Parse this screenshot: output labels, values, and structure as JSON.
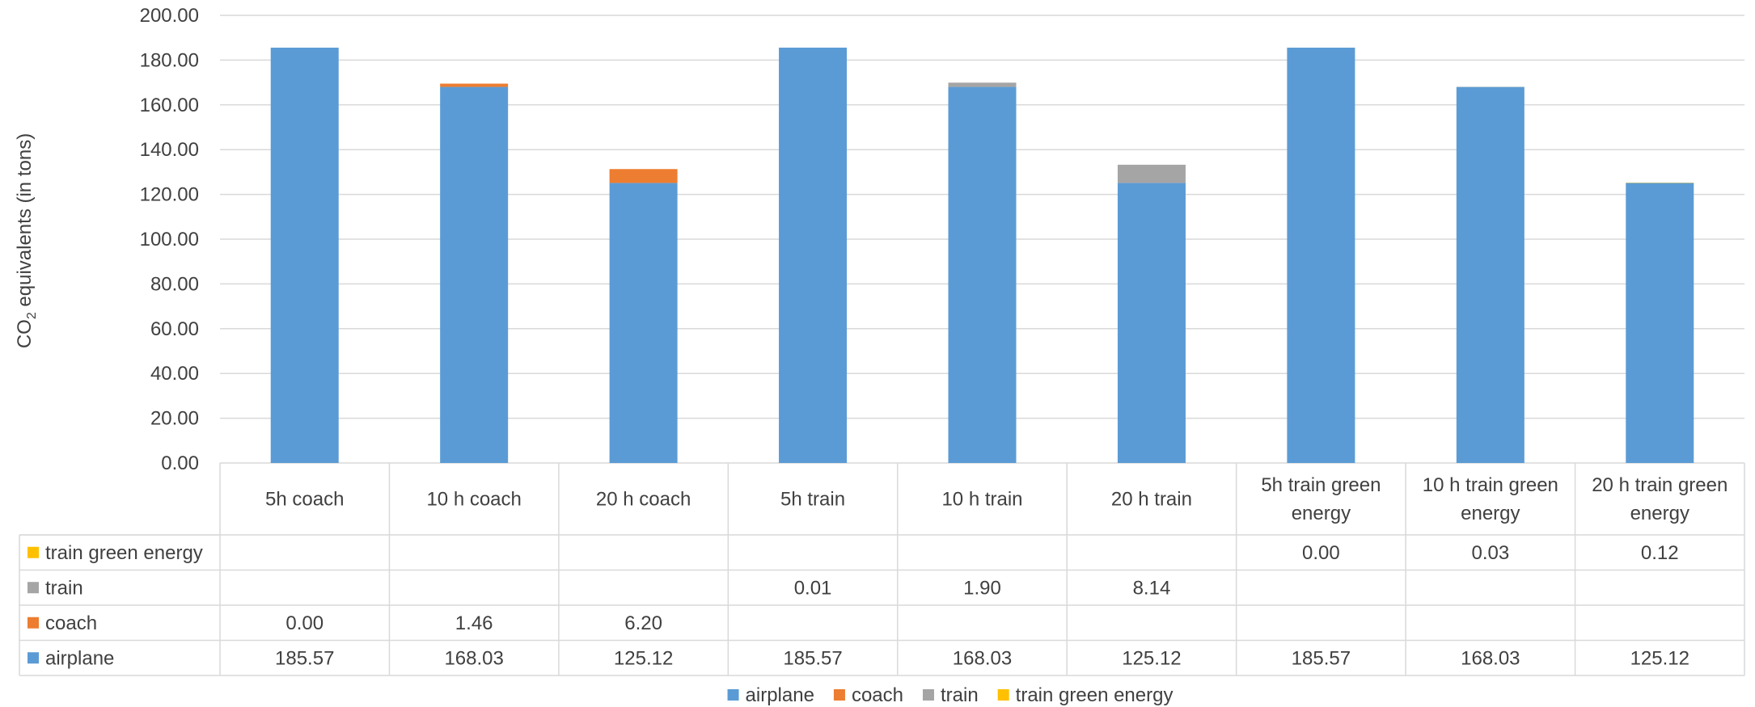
{
  "chart_data": {
    "type": "bar",
    "stacked": true,
    "ylabel_main": "CO",
    "ylabel_sub": "2",
    "ylabel_rest": " equivalents (in tons)",
    "ylim": [
      0,
      200
    ],
    "yticks": [
      "0.00",
      "20.00",
      "40.00",
      "60.00",
      "80.00",
      "100.00",
      "120.00",
      "140.00",
      "160.00",
      "180.00",
      "200.00"
    ],
    "ytick_values": [
      0,
      20,
      40,
      60,
      80,
      100,
      120,
      140,
      160,
      180,
      200
    ],
    "grid": true,
    "legend_position": "bottom",
    "categories": [
      [
        "5h coach"
      ],
      [
        "10 h coach"
      ],
      [
        "20 h coach"
      ],
      [
        "5h train"
      ],
      [
        "10 h train"
      ],
      [
        "20 h train"
      ],
      [
        "5h train green",
        "energy"
      ],
      [
        "10 h train green",
        "energy"
      ],
      [
        "20 h train green",
        "energy"
      ]
    ],
    "series": [
      {
        "name": "airplane",
        "color": "#5B9BD5",
        "values": [
          185.57,
          168.03,
          125.12,
          185.57,
          168.03,
          125.12,
          185.57,
          168.03,
          125.12
        ],
        "labels": [
          "185.57",
          "168.03",
          "125.12",
          "185.57",
          "168.03",
          "125.12",
          "185.57",
          "168.03",
          "125.12"
        ]
      },
      {
        "name": "coach",
        "color": "#ED7D31",
        "values": [
          0.0,
          1.46,
          6.2,
          null,
          null,
          null,
          null,
          null,
          null
        ],
        "labels": [
          "0.00",
          "1.46",
          "6.20",
          "",
          "",
          "",
          "",
          "",
          ""
        ]
      },
      {
        "name": "train",
        "color": "#A5A5A5",
        "values": [
          null,
          null,
          null,
          0.01,
          1.9,
          8.14,
          null,
          null,
          null
        ],
        "labels": [
          "",
          "",
          "",
          "0.01",
          "1.90",
          "8.14",
          "",
          "",
          ""
        ]
      },
      {
        "name": "train green energy",
        "color": "#FFC000",
        "values": [
          null,
          null,
          null,
          null,
          null,
          null,
          0.0,
          0.03,
          0.12
        ],
        "labels": [
          "",
          "",
          "",
          "",
          "",
          "",
          "0.00",
          "0.03",
          "0.12"
        ]
      }
    ],
    "table_row_order": [
      "train green energy",
      "train",
      "coach",
      "airplane"
    ],
    "legend_order": [
      "airplane",
      "coach",
      "train",
      "train green energy"
    ]
  }
}
